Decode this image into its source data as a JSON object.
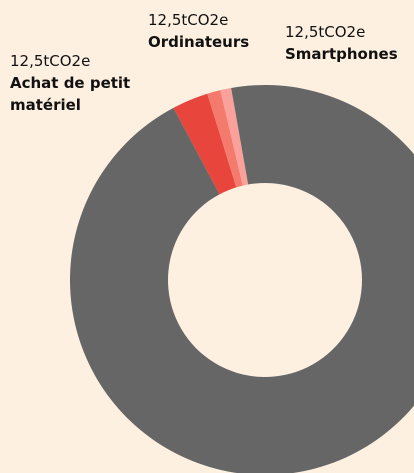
{
  "chart_data": {
    "type": "donut",
    "categories": [
      "Achat de petit matériel",
      "Ordinateurs",
      "Smartphones",
      null
    ],
    "values": [
      3,
      1.1,
      0.9,
      95
    ],
    "colors": [
      "#e8453c",
      "#f47a6e",
      "#f9a19a",
      "#666666"
    ],
    "annotations": [
      "12,5tCO2e",
      "12,5tCO2e",
      "12,5tCO2e",
      null
    ]
  }
}
